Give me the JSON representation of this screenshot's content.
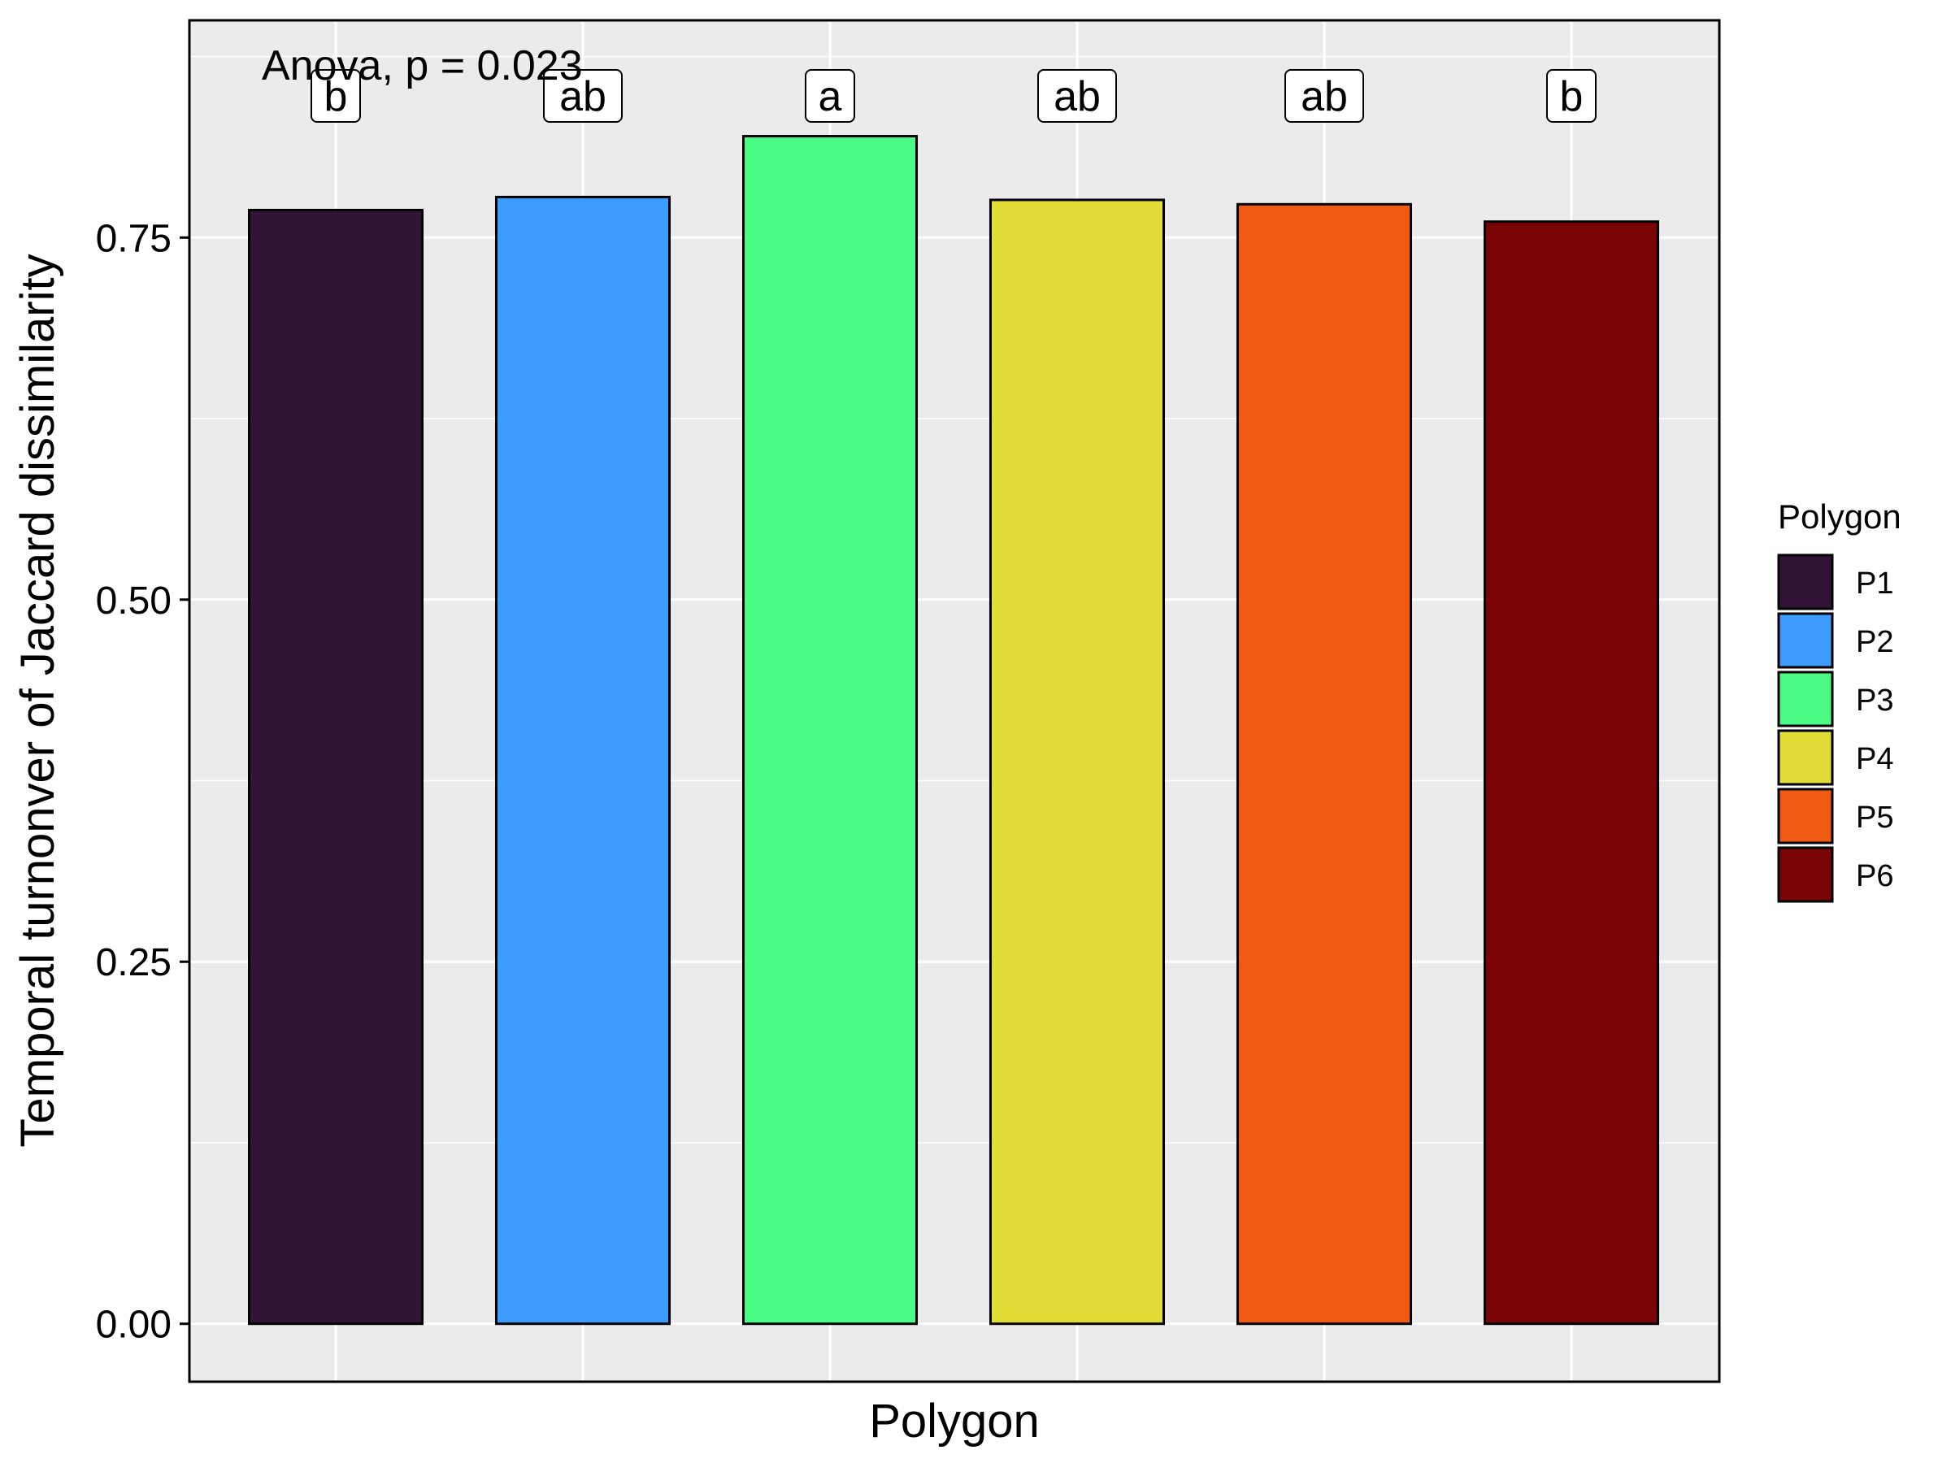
{
  "chart_data": {
    "type": "bar",
    "categories": [
      "P1",
      "P2",
      "P3",
      "P4",
      "P5",
      "P6"
    ],
    "values": [
      0.769,
      0.778,
      0.82,
      0.776,
      0.773,
      0.761
    ],
    "colors": [
      "#321437",
      "#3D9BFD",
      "#4AFC84",
      "#E1DD36",
      "#F05A13",
      "#780403"
    ],
    "bar_outline_color": "#000000",
    "significance_letters": [
      "b",
      "ab",
      "a",
      "ab",
      "ab",
      "b"
    ],
    "annotation": "Anova, p = 0.023",
    "title": "",
    "xlabel": "Polygon",
    "ylabel": "Temporal turnonver of Jaccard dissimilarity",
    "ylim": [
      -0.04,
      0.9
    ],
    "yticks": [
      0.0,
      0.25,
      0.5,
      0.75
    ],
    "ytick_labels": [
      "0.00",
      "0.25",
      "0.50",
      "0.75"
    ],
    "grid": true,
    "panel_background": "#EBEBEB",
    "legend": {
      "title": "Polygon",
      "placement": "right",
      "entries": [
        "P1",
        "P2",
        "P3",
        "P4",
        "P5",
        "P6"
      ]
    }
  }
}
